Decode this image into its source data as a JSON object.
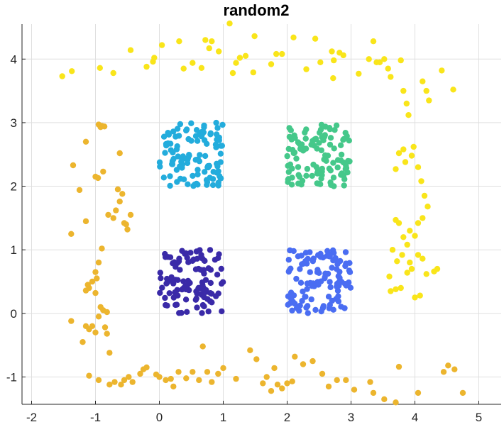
{
  "chart_data": {
    "type": "scatter",
    "title": "random2",
    "xlabel": "",
    "ylabel": "",
    "xlim": [
      -2.15,
      5.35
    ],
    "ylim": [
      -1.43,
      4.55
    ],
    "xticks": [
      -2,
      -1,
      0,
      1,
      2,
      3,
      4,
      5
    ],
    "yticks": [
      -1,
      0,
      1,
      2,
      3,
      4
    ],
    "xtick_labels": [
      "-2",
      "-1",
      "0",
      "1",
      "2",
      "3",
      "4",
      "5"
    ],
    "ytick_labels": [
      "-1",
      "0",
      "1",
      "2",
      "3",
      "4"
    ],
    "grid": true,
    "legend": "none",
    "series": [
      {
        "color": "#3a2aa8",
        "cluster": {
          "x_range": [
            0.0,
            1.0
          ],
          "y_range": [
            0.0,
            1.0
          ],
          "count": 110
        }
      },
      {
        "color": "#4a6df2",
        "cluster": {
          "x_range": [
            2.0,
            3.0
          ],
          "y_range": [
            0.0,
            1.0
          ],
          "count": 110
        }
      },
      {
        "color": "#23acdc",
        "cluster": {
          "x_range": [
            0.0,
            1.0
          ],
          "y_range": [
            2.0,
            3.0
          ],
          "count": 110
        }
      },
      {
        "color": "#45c88a",
        "cluster": {
          "x_range": [
            2.0,
            3.0
          ],
          "y_range": [
            2.0,
            3.0
          ],
          "count": 110
        }
      },
      {
        "color": "#f9e51a",
        "points": [
          [
            -1.52,
            3.73
          ],
          [
            -1.37,
            3.81
          ],
          [
            -0.93,
            3.86
          ],
          [
            -0.72,
            3.78
          ],
          [
            -0.45,
            4.14
          ],
          [
            -0.2,
            3.88
          ],
          [
            -0.1,
            3.96
          ],
          [
            -0.08,
            4.02
          ],
          [
            0.04,
            4.22
          ],
          [
            0.31,
            4.28
          ],
          [
            0.38,
            3.85
          ],
          [
            0.52,
            3.94
          ],
          [
            0.66,
            3.86
          ],
          [
            0.72,
            4.3
          ],
          [
            0.78,
            4.17
          ],
          [
            0.82,
            4.28
          ],
          [
            0.93,
            4.12
          ],
          [
            1.1,
            4.56
          ],
          [
            1.15,
            3.78
          ],
          [
            1.2,
            3.94
          ],
          [
            1.26,
            4.02
          ],
          [
            1.35,
            4.05
          ],
          [
            1.47,
            3.79
          ],
          [
            1.49,
            4.36
          ],
          [
            1.75,
            3.92
          ],
          [
            1.83,
            4.08
          ],
          [
            1.92,
            4.08
          ],
          [
            2.1,
            4.34
          ],
          [
            2.3,
            3.84
          ],
          [
            2.44,
            4.32
          ],
          [
            2.52,
            3.95
          ],
          [
            2.7,
            4.12
          ],
          [
            2.72,
            3.7
          ],
          [
            2.73,
            3.98
          ],
          [
            2.82,
            4.1
          ],
          [
            2.88,
            4.06
          ],
          [
            3.12,
            3.77
          ],
          [
            3.28,
            4.0
          ],
          [
            3.35,
            4.28
          ],
          [
            3.4,
            3.95
          ],
          [
            3.45,
            3.95
          ],
          [
            3.52,
            4.0
          ],
          [
            3.58,
            3.85
          ],
          [
            3.62,
            3.72
          ],
          [
            3.78,
            3.98
          ],
          [
            3.82,
            3.5
          ],
          [
            3.87,
            3.3
          ],
          [
            3.9,
            3.12
          ],
          [
            4.12,
            3.65
          ],
          [
            4.18,
            3.5
          ],
          [
            4.22,
            3.35
          ],
          [
            4.42,
            3.82
          ],
          [
            4.6,
            3.52
          ],
          [
            3.7,
            2.27
          ],
          [
            3.75,
            2.52
          ],
          [
            3.82,
            2.58
          ],
          [
            3.85,
            2.38
          ],
          [
            3.95,
            2.48
          ],
          [
            3.98,
            2.62
          ],
          [
            4.05,
            2.3
          ],
          [
            4.1,
            2.08
          ],
          [
            4.15,
            1.85
          ],
          [
            4.2,
            1.68
          ],
          [
            3.7,
            1.47
          ],
          [
            3.75,
            1.42
          ],
          [
            3.82,
            1.2
          ],
          [
            3.88,
            1.08
          ],
          [
            3.92,
            1.3
          ],
          [
            4.0,
            1.22
          ],
          [
            4.05,
            1.42
          ],
          [
            4.12,
            1.5
          ],
          [
            3.65,
            1.0
          ],
          [
            3.72,
            0.82
          ],
          [
            3.8,
            0.92
          ],
          [
            3.88,
            0.64
          ],
          [
            3.92,
            0.8
          ],
          [
            3.95,
            0.7
          ],
          [
            4.05,
            0.92
          ],
          [
            4.12,
            0.86
          ],
          [
            4.18,
            0.62
          ],
          [
            3.6,
            0.58
          ],
          [
            3.62,
            0.35
          ],
          [
            3.7,
            0.38
          ],
          [
            3.78,
            0.4
          ],
          [
            4.0,
            0.25
          ],
          [
            4.08,
            0.28
          ],
          [
            4.3,
            0.66
          ],
          [
            4.35,
            0.7
          ]
        ]
      },
      {
        "color": "#ecb52e",
        "points": [
          [
            -0.95,
            2.97
          ],
          [
            -0.92,
            2.93
          ],
          [
            -0.9,
            2.95
          ],
          [
            -0.86,
            2.94
          ],
          [
            -1.15,
            2.7
          ],
          [
            -1.35,
            2.33
          ],
          [
            -1.0,
            2.15
          ],
          [
            -0.96,
            2.13
          ],
          [
            -0.88,
            2.23
          ],
          [
            -0.62,
            2.52
          ],
          [
            -1.25,
            1.94
          ],
          [
            -0.65,
            1.95
          ],
          [
            -0.58,
            1.88
          ],
          [
            -0.62,
            1.76
          ],
          [
            -0.8,
            1.55
          ],
          [
            -0.72,
            1.5
          ],
          [
            -0.68,
            1.62
          ],
          [
            -0.55,
            1.42
          ],
          [
            -0.52,
            1.4
          ],
          [
            -0.5,
            1.32
          ],
          [
            -0.45,
            1.55
          ],
          [
            -1.15,
            1.45
          ],
          [
            -1.38,
            1.25
          ],
          [
            -0.9,
            1.02
          ],
          [
            -0.95,
            0.8
          ],
          [
            -1.0,
            0.65
          ],
          [
            -0.98,
            0.55
          ],
          [
            -1.05,
            0.5
          ],
          [
            -1.12,
            0.45
          ],
          [
            -1.15,
            0.36
          ],
          [
            -1.1,
            0.4
          ],
          [
            -1.0,
            0.32
          ],
          [
            -0.92,
            0.1
          ],
          [
            -0.88,
            0.05
          ],
          [
            -0.82,
            0.02
          ],
          [
            -0.95,
            -0.05
          ],
          [
            -1.05,
            -0.2
          ],
          [
            -1.1,
            -0.25
          ],
          [
            -1.0,
            -0.3
          ],
          [
            -0.82,
            -0.32
          ],
          [
            -0.85,
            -0.22
          ],
          [
            -0.78,
            -0.62
          ],
          [
            -1.2,
            -0.45
          ],
          [
            -1.15,
            -0.2
          ],
          [
            -1.38,
            -0.12
          ],
          [
            -1.1,
            -0.98
          ],
          [
            -0.95,
            -1.05
          ],
          [
            -0.78,
            -1.12
          ],
          [
            -0.7,
            -1.08
          ],
          [
            -0.6,
            -1.12
          ],
          [
            -0.55,
            -1.05
          ],
          [
            -0.48,
            -1.0
          ],
          [
            -0.42,
            -1.08
          ],
          [
            -0.3,
            -0.95
          ],
          [
            -0.25,
            -0.88
          ],
          [
            -0.2,
            -0.85
          ],
          [
            -0.05,
            -0.96
          ],
          [
            0.0,
            -1.0
          ],
          [
            0.1,
            -1.05
          ],
          [
            0.18,
            -1.03
          ],
          [
            0.22,
            -1.15
          ],
          [
            0.3,
            -0.92
          ],
          [
            0.42,
            -1.02
          ],
          [
            0.52,
            -0.92
          ],
          [
            0.62,
            -1.05
          ],
          [
            0.68,
            -0.52
          ],
          [
            0.75,
            -0.92
          ],
          [
            0.82,
            -1.08
          ],
          [
            0.92,
            -0.95
          ],
          [
            1.0,
            -0.86
          ],
          [
            1.2,
            -1.03
          ],
          [
            1.42,
            -0.58
          ],
          [
            1.52,
            -0.72
          ],
          [
            1.62,
            -1.1
          ],
          [
            1.68,
            -1.0
          ],
          [
            1.75,
            -1.22
          ],
          [
            1.8,
            -0.86
          ],
          [
            1.85,
            -1.12
          ],
          [
            1.92,
            -1.18
          ],
          [
            2.0,
            -1.1
          ],
          [
            2.08,
            -1.07
          ],
          [
            2.12,
            -0.68
          ],
          [
            2.25,
            -0.8
          ],
          [
            2.4,
            -0.75
          ],
          [
            2.55,
            -0.95
          ],
          [
            2.65,
            -1.15
          ],
          [
            2.78,
            -1.05
          ],
          [
            2.92,
            -1.05
          ],
          [
            3.05,
            -1.2
          ],
          [
            3.3,
            -1.08
          ],
          [
            3.35,
            -1.25
          ],
          [
            3.52,
            -1.35
          ],
          [
            3.7,
            -1.4
          ],
          [
            3.75,
            -0.84
          ],
          [
            4.05,
            -1.25
          ],
          [
            4.45,
            -0.92
          ],
          [
            4.52,
            -0.82
          ],
          [
            4.62,
            -0.88
          ],
          [
            4.75,
            -1.25
          ]
        ]
      }
    ]
  }
}
